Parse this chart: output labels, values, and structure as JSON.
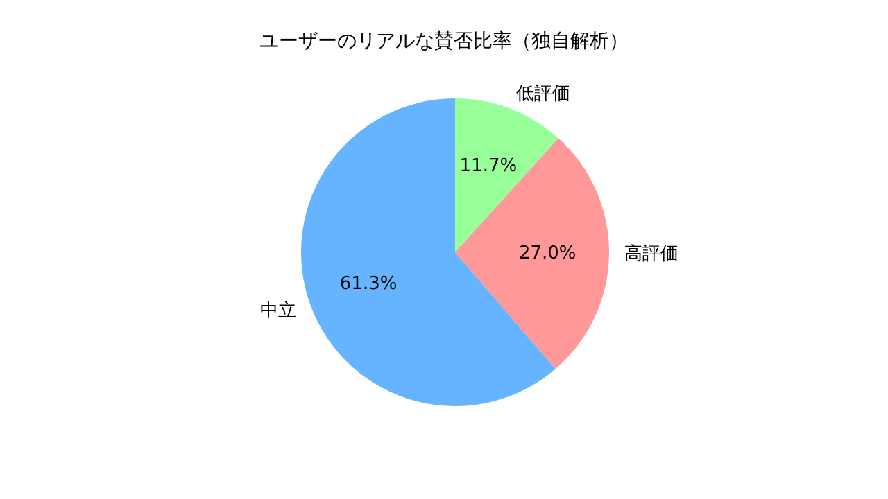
{
  "chart_data": {
    "type": "pie",
    "title": "ユーザーのリアルな賛否比率（独自解析）",
    "categories": [
      "低評価",
      "高評価",
      "中立"
    ],
    "values": [
      11.7,
      27.0,
      61.3
    ],
    "colors": [
      "#99ff99",
      "#ff9999",
      "#66b3ff"
    ],
    "value_labels": [
      "11.7%",
      "27.0%",
      "61.3%"
    ],
    "legend": false
  }
}
